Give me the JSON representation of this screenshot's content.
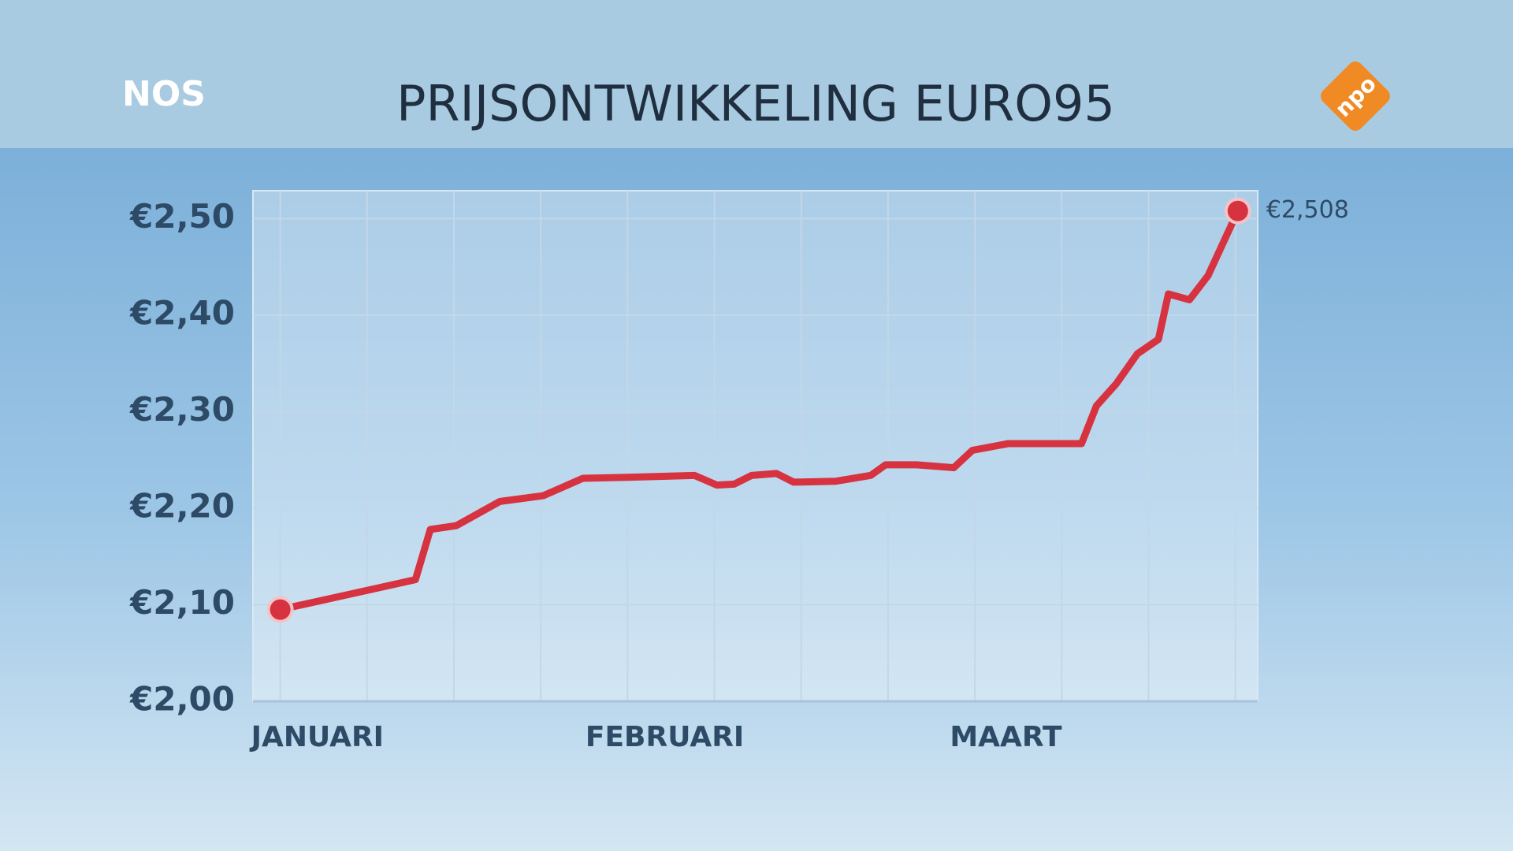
{
  "header": {
    "logo": "NOS",
    "broadcaster": "npo"
  },
  "chart_data": {
    "type": "line",
    "title": "PRIJSONTWIKKELING EURO95",
    "x": [
      0,
      10.9,
      12.1,
      14.2,
      17.7,
      21.2,
      24.4,
      28,
      33.4,
      35.2,
      36.6,
      38,
      40,
      41.4,
      44.8,
      47.6,
      48.8,
      51.3,
      54.3,
      55.8,
      58.7,
      64.6,
      65.8,
      67.4,
      69.1,
      70.8,
      71.6,
      73.3,
      74.8,
      77.2
    ],
    "series": [
      {
        "color": "#d7323f",
        "values": [
          2.095,
          2.126,
          2.178,
          2.182,
          2.207,
          2.213,
          2.231,
          2.232,
          2.234,
          2.224,
          2.225,
          2.234,
          2.236,
          2.227,
          2.228,
          2.234,
          2.245,
          2.245,
          2.242,
          2.26,
          2.267,
          2.267,
          2.306,
          2.329,
          2.36,
          2.375,
          2.422,
          2.416,
          2.441,
          2.508
        ],
        "value_labels": [
          null,
          null,
          null,
          null,
          null,
          null,
          null,
          null,
          null,
          null,
          null,
          null,
          null,
          null,
          null,
          null,
          null,
          null,
          null,
          null,
          null,
          null,
          null,
          null,
          null,
          null,
          null,
          null,
          null,
          "€2,508"
        ]
      }
    ],
    "xlim": [
      -2.2,
      78.8
    ],
    "xticks": [
      {
        "value": 3,
        "label": "JANUARI"
      },
      {
        "value": 31,
        "label": "FEBRUARI"
      },
      {
        "value": 58.5,
        "label": "MAART"
      }
    ],
    "xgrid": [
      0,
      7,
      14,
      21,
      28,
      35,
      42,
      49,
      56,
      63,
      70,
      77
    ],
    "ylim": [
      2.0,
      2.529
    ],
    "yticks": [
      {
        "value": 2.0,
        "label": "€2,00"
      },
      {
        "value": 2.1,
        "label": "€2,10"
      },
      {
        "value": 2.2,
        "label": "€2,20"
      },
      {
        "value": 2.3,
        "label": "€2,30"
      },
      {
        "value": 2.4,
        "label": "€2,40"
      },
      {
        "value": 2.5,
        "label": "€2,50"
      }
    ],
    "grid": true
  }
}
